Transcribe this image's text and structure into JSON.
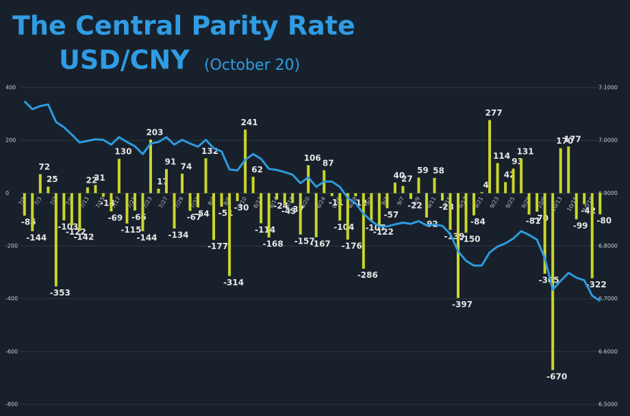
{
  "chart_data": {
    "type": "bar_line",
    "title": "The Central Parity Rate",
    "subtitle": "USD/CNY",
    "date_note": "(October 20)",
    "categories": [
      "7/1",
      null,
      "7/3",
      null,
      "7/7",
      null,
      "7/9",
      null,
      "7/13",
      null,
      "7/15",
      null,
      "7/17",
      null,
      "7/21",
      null,
      "7/23",
      null,
      "7/27",
      null,
      "7/29",
      null,
      "7/31",
      null,
      "8/4",
      null,
      "8/6",
      null,
      "8/10",
      null,
      "8/12",
      null,
      "8/14",
      null,
      "8/18",
      null,
      "8/20",
      null,
      "8/24",
      null,
      "8/26",
      null,
      "8/28",
      null,
      "9/1",
      null,
      "9/3",
      null,
      "9/7",
      null,
      "9/9",
      null,
      "9/11",
      null,
      "9/15",
      null,
      "9/17",
      null,
      "9/21",
      null,
      "9/23",
      null,
      "9/25",
      null,
      "9/29",
      null,
      "10/9",
      null,
      "10/13",
      null,
      "10/15",
      null,
      "10/19",
      null
    ],
    "series": [
      {
        "type": "bar",
        "color": "#c9d62b",
        "values": [
          -85,
          -144,
          72,
          25,
          -353,
          -103,
          -122,
          -142,
          22,
          31,
          -14,
          -69,
          130,
          -115,
          -66,
          -144,
          203,
          17,
          91,
          -134,
          74,
          -67,
          -54,
          132,
          -177,
          -51,
          -314,
          -30,
          241,
          62,
          -114,
          -168,
          -24,
          -43,
          -37,
          -157,
          106,
          -167,
          87,
          -11,
          -104,
          -176,
          -12,
          -286,
          -107,
          -122,
          -57,
          40,
          27,
          -22,
          59,
          -92,
          58,
          -28,
          -139,
          -397,
          -150,
          -84,
          4,
          277,
          114,
          42,
          93,
          131,
          -81,
          -70,
          -305,
          -670,
          170,
          177,
          -99,
          -42,
          -322,
          -80
        ]
      },
      {
        "type": "line",
        "axis": "y2",
        "color": "#2e9be0",
        "values": [
          7.074,
          7.059,
          7.065,
          7.068,
          7.035,
          7.025,
          7.011,
          6.996,
          6.999,
          7.002,
          7.001,
          6.992,
          7.006,
          6.997,
          6.989,
          6.974,
          6.994,
          6.997,
          7.006,
          6.992,
          7.001,
          6.994,
          6.988,
          7.001,
          6.985,
          6.979,
          6.945,
          6.943,
          6.963,
          6.974,
          6.965,
          6.946,
          6.944,
          6.94,
          6.935,
          6.919,
          6.93,
          6.912,
          6.922,
          6.922,
          6.912,
          6.891,
          6.881,
          6.861,
          6.847,
          6.837,
          6.837,
          6.841,
          6.844,
          6.842,
          6.847,
          6.839,
          6.841,
          6.838,
          6.823,
          6.79,
          6.772,
          6.763,
          6.763,
          6.788,
          6.799,
          6.805,
          6.814,
          6.828,
          6.821,
          6.812,
          6.777,
          6.717,
          6.734,
          6.749,
          6.74,
          6.735,
          6.706,
          6.696
        ]
      }
    ],
    "ylim": [
      -800,
      400
    ],
    "yticks": [
      -800,
      -600,
      -400,
      -200,
      0,
      200,
      400
    ],
    "y2lim": [
      6.5,
      7.1
    ],
    "y2ticks": [
      {
        "value": 6.5,
        "label": "6.5000"
      },
      {
        "value": 6.6,
        "label": "6.6000"
      },
      {
        "value": 6.7,
        "label": "6.7000"
      },
      {
        "value": 6.8,
        "label": "6.8000"
      },
      {
        "value": 6.9,
        "label": "6.9000"
      },
      {
        "value": 7.0,
        "label": "7.0000"
      },
      {
        "value": 7.1,
        "label": "7.1000"
      }
    ],
    "grid": true
  }
}
